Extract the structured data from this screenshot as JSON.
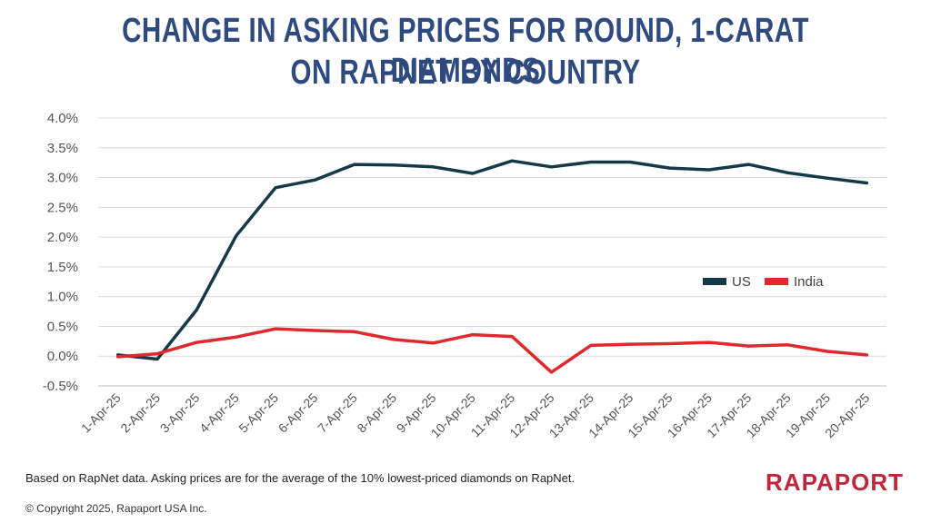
{
  "chart_data": {
    "type": "line",
    "title_lines": [
      "CHANGE IN ASKING PRICES FOR ROUND, 1-CARAT DIAMONDS",
      "ON RAPNET BY COUNTRY"
    ],
    "categories": [
      "1-Apr-25",
      "2-Apr-25",
      "3-Apr-25",
      "4-Apr-25",
      "5-Apr-25",
      "6-Apr-25",
      "7-Apr-25",
      "8-Apr-25",
      "9-Apr-25",
      "10-Apr-25",
      "11-Apr-25",
      "12-Apr-25",
      "13-Apr-25",
      "14-Apr-25",
      "15-Apr-25",
      "16-Apr-25",
      "17-Apr-25",
      "18-Apr-25",
      "19-Apr-25",
      "20-Apr-25"
    ],
    "yticks": [
      "-0.5%",
      "0.0%",
      "0.5%",
      "1.0%",
      "1.5%",
      "2.0%",
      "2.5%",
      "3.0%",
      "3.5%",
      "4.0%"
    ],
    "ylim": [
      -0.5,
      4.0
    ],
    "grid": true,
    "legend_position": "right-middle",
    "series": [
      {
        "name": "US",
        "color": "#16394a",
        "values": [
          0.02,
          -0.05,
          0.78,
          2.02,
          2.83,
          2.96,
          3.22,
          3.21,
          3.18,
          3.07,
          3.28,
          3.18,
          3.26,
          3.26,
          3.16,
          3.13,
          3.22,
          3.08,
          2.99,
          2.91
        ]
      },
      {
        "name": "India",
        "color": "#e0282e",
        "values": [
          -0.01,
          0.04,
          0.23,
          0.32,
          0.46,
          0.43,
          0.41,
          0.28,
          0.22,
          0.36,
          0.33,
          -0.27,
          0.18,
          0.2,
          0.21,
          0.23,
          0.17,
          0.19,
          0.08,
          0.02
        ]
      }
    ]
  },
  "footnote": "Based on RapNet data. Asking prices are for the average of the 10% lowest-priced diamonds on RapNet.",
  "copyright": "© Copyright 2025, Rapaport USA Inc.",
  "brand": "RAPAPORT",
  "colors": {
    "title": "#2f4a7e",
    "brand": "#c0273b"
  }
}
